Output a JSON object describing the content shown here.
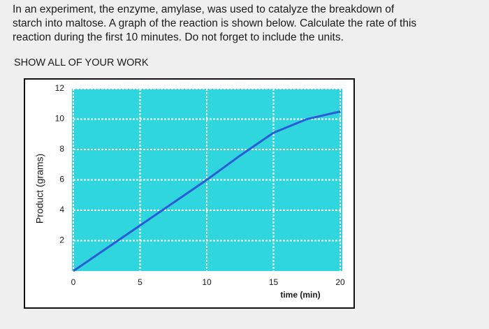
{
  "question": {
    "lines": [
      "In an experiment, the enzyme, amylase, was used to catalyze the breakdown of",
      "starch into maltose. A graph of the reaction is shown below. Calculate the rate of this",
      "reaction during the first 10 minutes. Do not forget to include the units."
    ]
  },
  "instruction": "SHOW ALL OF YOUR WORK",
  "chart_data": {
    "type": "line",
    "x_label": "time (min)",
    "y_label": "Product (grams)",
    "x": [
      0,
      2.5,
      5,
      7.5,
      10,
      12.5,
      15,
      17.5,
      20
    ],
    "values": [
      0,
      1.5,
      3,
      4.5,
      6,
      7.6,
      9.1,
      10.0,
      10.5
    ],
    "color": "#2b5bd6",
    "background": "#2fd6de",
    "xlim": [
      0,
      20
    ],
    "xticks": [
      0,
      5,
      10,
      15,
      20
    ],
    "ylim": [
      0,
      12
    ],
    "yticks": [
      2,
      4,
      6,
      8,
      10,
      12
    ],
    "grid": true
  }
}
